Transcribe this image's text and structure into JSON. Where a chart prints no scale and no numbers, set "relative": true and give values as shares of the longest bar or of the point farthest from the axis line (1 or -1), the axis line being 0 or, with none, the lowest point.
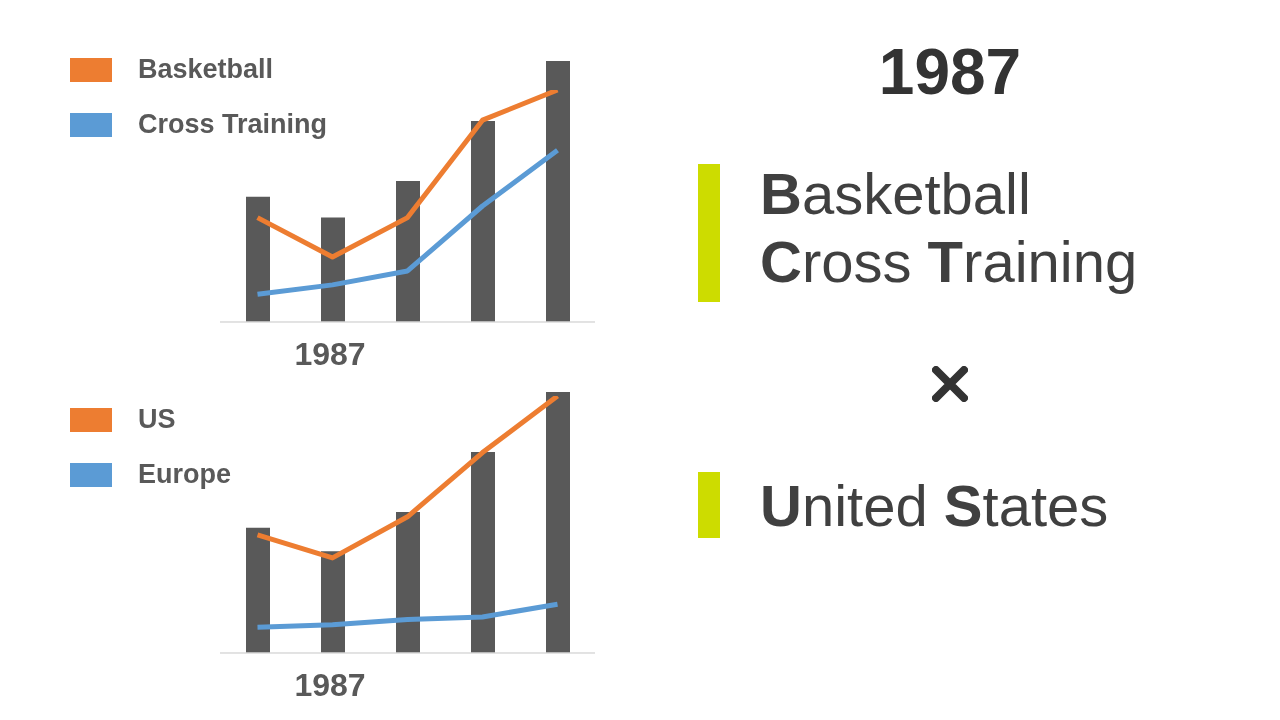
{
  "chart_data": [
    {
      "type": "bar",
      "relative": true,
      "categories": [
        null,
        null,
        null,
        null,
        null
      ],
      "xlabel": "1987",
      "color": "#595959",
      "values": [
        0.48,
        0.4,
        0.54,
        0.77,
        1
      ]
    },
    {
      "type": "line",
      "relative": true,
      "categories": [
        null,
        null,
        null,
        null,
        null
      ],
      "legend": "top left",
      "series": [
        {
          "name": "Basketball",
          "color": "#ed7d31",
          "values": [
            0.45,
            0.28,
            0.45,
            0.87,
            1
          ]
        },
        {
          "name": "Cross Training",
          "color": "#5b9bd5",
          "values": [
            0.12,
            0.16,
            0.22,
            0.5,
            0.74
          ]
        }
      ]
    },
    {
      "type": "bar",
      "relative": true,
      "categories": [
        null,
        null,
        null,
        null,
        null
      ],
      "xlabel": "1987",
      "color": "#595959",
      "values": [
        0.48,
        0.39,
        0.54,
        0.77,
        1
      ]
    },
    {
      "type": "line",
      "relative": true,
      "categories": [
        null,
        null,
        null,
        null,
        null
      ],
      "legend": "top left",
      "series": [
        {
          "name": "US",
          "color": "#ed7d31",
          "values": [
            0.46,
            0.37,
            0.53,
            0.78,
            1
          ]
        },
        {
          "name": "Europe",
          "color": "#5b9bd5",
          "values": [
            0.1,
            0.11,
            0.13,
            0.14,
            0.19
          ]
        }
      ]
    },
    {
      "type": "other",
      "title": "1987",
      "annotations": [
        "Basketball",
        "Cross Training",
        "United States"
      ]
    }
  ]
}
